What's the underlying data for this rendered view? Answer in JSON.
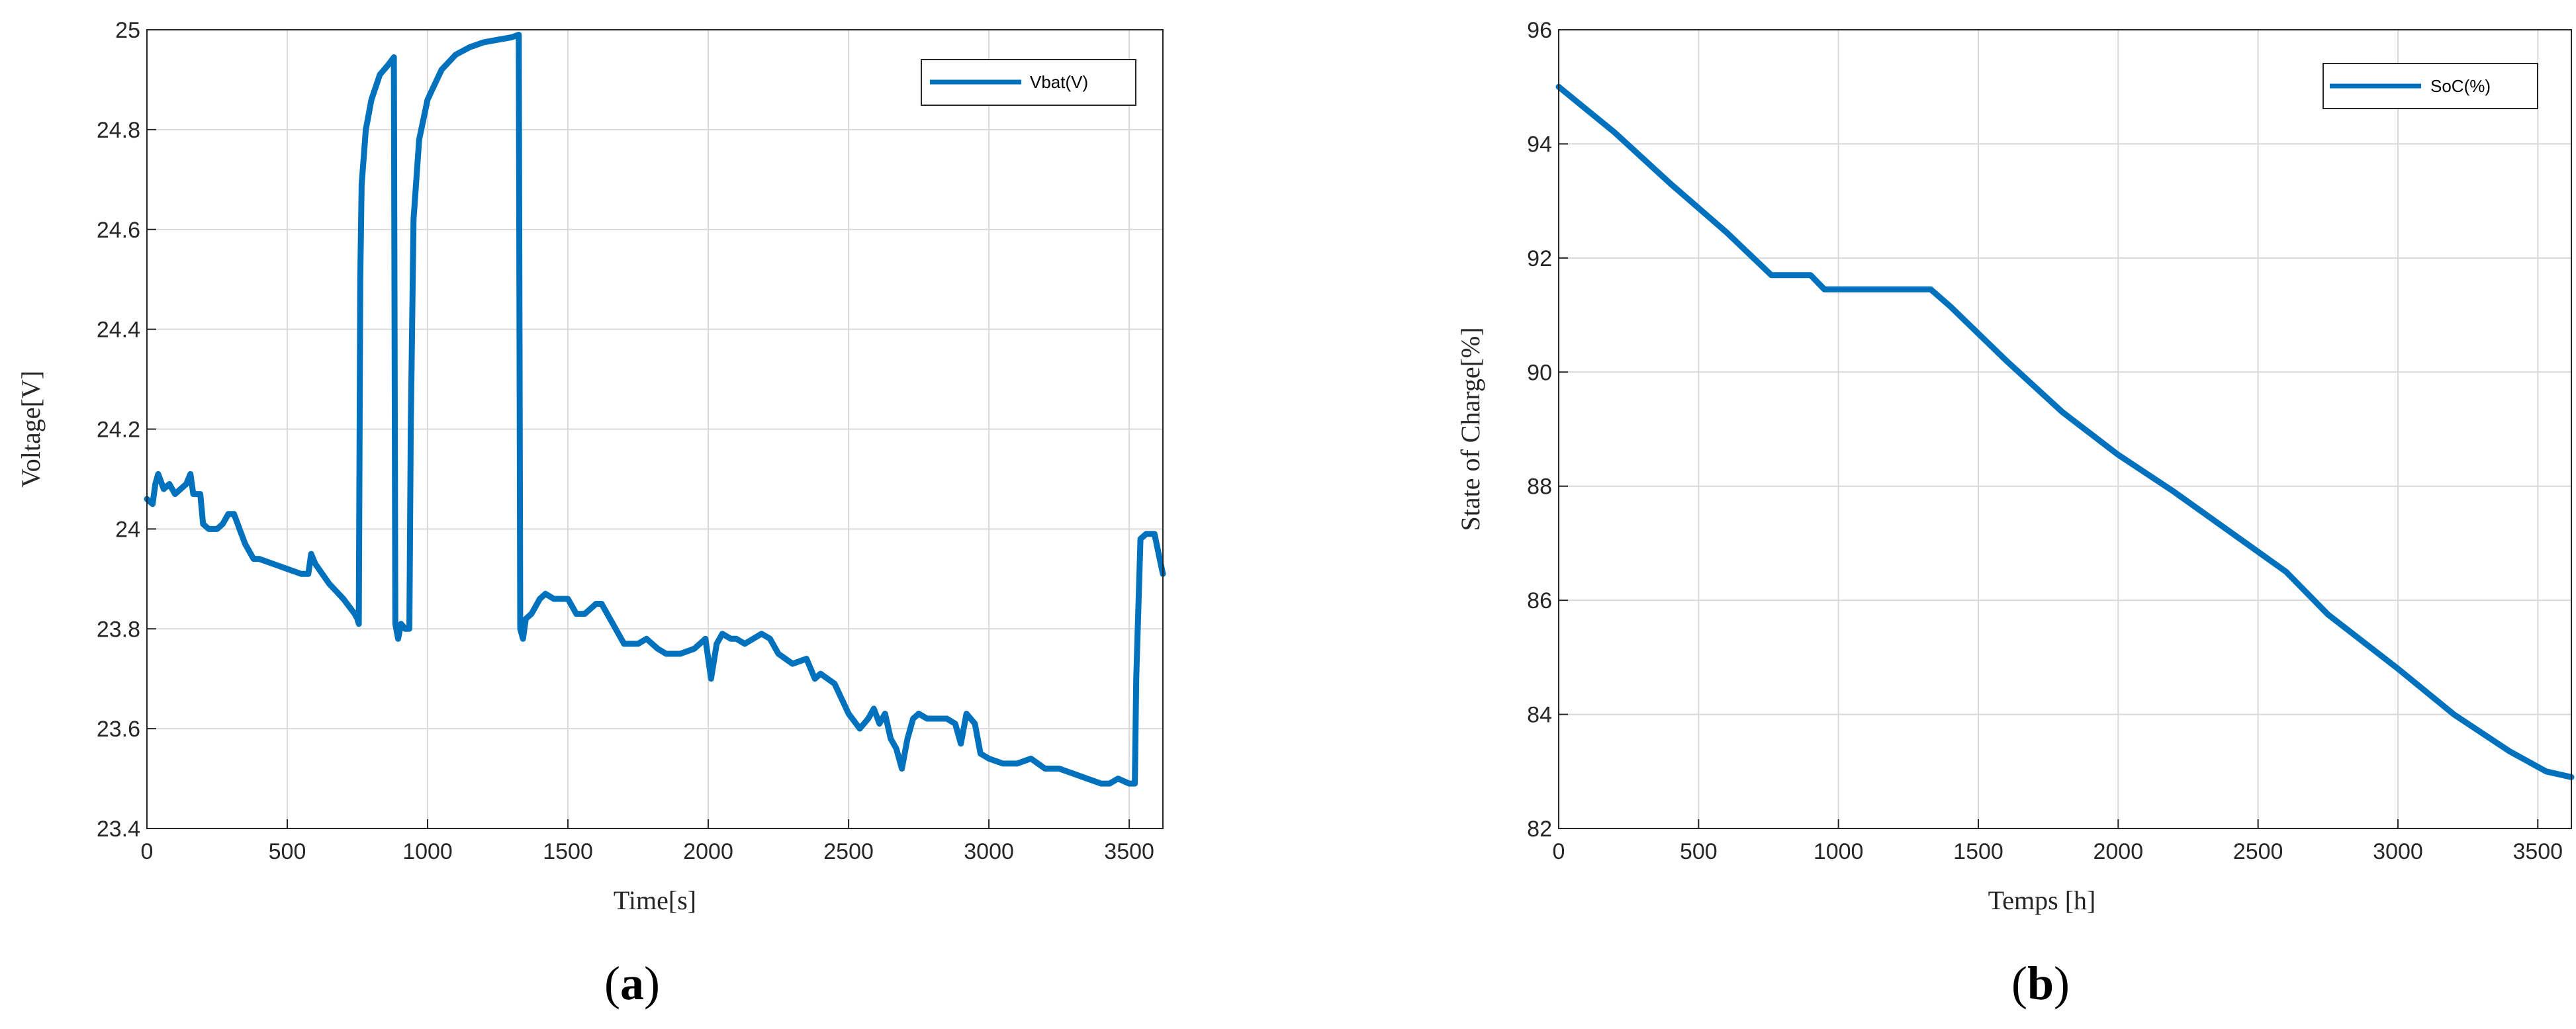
{
  "chart_data": [
    {
      "type": "line",
      "panel_label": "a",
      "xlabel": "Time[s]",
      "ylabel": "Voltage[V]",
      "xlim": [
        0,
        3620
      ],
      "ylim": [
        23.4,
        25
      ],
      "xticks": [
        0,
        500,
        1000,
        1500,
        2000,
        2500,
        3000,
        3500
      ],
      "yticks": [
        23.4,
        23.6,
        23.8,
        24,
        24.2,
        24.4,
        24.6,
        24.8,
        25
      ],
      "grid": true,
      "legend_position": "top-right",
      "color": "#0072BD",
      "series": [
        {
          "name": "Vbat(V)",
          "points": [
            [
              0,
              24.06
            ],
            [
              20,
              24.05
            ],
            [
              30,
              24.09
            ],
            [
              40,
              24.11
            ],
            [
              60,
              24.08
            ],
            [
              80,
              24.09
            ],
            [
              100,
              24.07
            ],
            [
              120,
              24.08
            ],
            [
              140,
              24.09
            ],
            [
              155,
              24.11
            ],
            [
              165,
              24.07
            ],
            [
              190,
              24.07
            ],
            [
              200,
              24.01
            ],
            [
              220,
              24.0
            ],
            [
              250,
              24.0
            ],
            [
              270,
              24.01
            ],
            [
              290,
              24.03
            ],
            [
              310,
              24.03
            ],
            [
              330,
              24.0
            ],
            [
              350,
              23.97
            ],
            [
              380,
              23.94
            ],
            [
              400,
              23.94
            ],
            [
              450,
              23.93
            ],
            [
              500,
              23.92
            ],
            [
              550,
              23.91
            ],
            [
              575,
              23.91
            ],
            [
              585,
              23.95
            ],
            [
              600,
              23.93
            ],
            [
              650,
              23.89
            ],
            [
              700,
              23.86
            ],
            [
              740,
              23.83
            ],
            [
              750,
              23.82
            ],
            [
              755,
              23.81
            ],
            [
              760,
              24.5
            ],
            [
              765,
              24.69
            ],
            [
              780,
              24.8
            ],
            [
              800,
              24.86
            ],
            [
              830,
              24.91
            ],
            [
              860,
              24.93
            ],
            [
              880,
              24.945
            ],
            [
              885,
              23.81
            ],
            [
              895,
              23.78
            ],
            [
              905,
              23.81
            ],
            [
              920,
              23.8
            ],
            [
              935,
              23.8
            ],
            [
              940,
              24.2
            ],
            [
              950,
              24.62
            ],
            [
              970,
              24.78
            ],
            [
              1000,
              24.86
            ],
            [
              1050,
              24.92
            ],
            [
              1100,
              24.95
            ],
            [
              1150,
              24.965
            ],
            [
              1200,
              24.975
            ],
            [
              1250,
              24.98
            ],
            [
              1300,
              24.985
            ],
            [
              1325,
              24.99
            ],
            [
              1330,
              23.8
            ],
            [
              1340,
              23.78
            ],
            [
              1350,
              23.82
            ],
            [
              1370,
              23.83
            ],
            [
              1380,
              23.84
            ],
            [
              1400,
              23.86
            ],
            [
              1420,
              23.87
            ],
            [
              1450,
              23.86
            ],
            [
              1500,
              23.86
            ],
            [
              1530,
              23.83
            ],
            [
              1560,
              23.83
            ],
            [
              1600,
              23.85
            ],
            [
              1620,
              23.85
            ],
            [
              1650,
              23.82
            ],
            [
              1700,
              23.77
            ],
            [
              1750,
              23.77
            ],
            [
              1780,
              23.78
            ],
            [
              1820,
              23.76
            ],
            [
              1850,
              23.75
            ],
            [
              1900,
              23.75
            ],
            [
              1950,
              23.76
            ],
            [
              1990,
              23.78
            ],
            [
              2000,
              23.74
            ],
            [
              2010,
              23.7
            ],
            [
              2030,
              23.77
            ],
            [
              2050,
              23.79
            ],
            [
              2080,
              23.78
            ],
            [
              2100,
              23.78
            ],
            [
              2130,
              23.77
            ],
            [
              2160,
              23.78
            ],
            [
              2190,
              23.79
            ],
            [
              2220,
              23.78
            ],
            [
              2250,
              23.75
            ],
            [
              2300,
              23.73
            ],
            [
              2350,
              23.74
            ],
            [
              2380,
              23.7
            ],
            [
              2400,
              23.71
            ],
            [
              2450,
              23.69
            ],
            [
              2500,
              23.63
            ],
            [
              2540,
              23.6
            ],
            [
              2570,
              23.62
            ],
            [
              2590,
              23.64
            ],
            [
              2610,
              23.61
            ],
            [
              2630,
              23.63
            ],
            [
              2650,
              23.58
            ],
            [
              2670,
              23.56
            ],
            [
              2690,
              23.52
            ],
            [
              2710,
              23.58
            ],
            [
              2730,
              23.62
            ],
            [
              2750,
              23.63
            ],
            [
              2780,
              23.62
            ],
            [
              2850,
              23.62
            ],
            [
              2880,
              23.61
            ],
            [
              2900,
              23.57
            ],
            [
              2920,
              23.63
            ],
            [
              2950,
              23.61
            ],
            [
              2970,
              23.55
            ],
            [
              3000,
              23.54
            ],
            [
              3050,
              23.53
            ],
            [
              3100,
              23.53
            ],
            [
              3150,
              23.54
            ],
            [
              3200,
              23.52
            ],
            [
              3250,
              23.52
            ],
            [
              3300,
              23.51
            ],
            [
              3350,
              23.5
            ],
            [
              3400,
              23.49
            ],
            [
              3430,
              23.49
            ],
            [
              3460,
              23.5
            ],
            [
              3500,
              23.49
            ],
            [
              3520,
              23.49
            ],
            [
              3525,
              23.7
            ],
            [
              3540,
              23.98
            ],
            [
              3560,
              23.99
            ],
            [
              3590,
              23.99
            ],
            [
              3605,
              23.95
            ],
            [
              3620,
              23.91
            ]
          ]
        }
      ]
    },
    {
      "type": "line",
      "panel_label": "b",
      "xlabel": "Temps [h]",
      "ylabel": "State of Charge[%]",
      "xlim": [
        0,
        3620
      ],
      "ylim": [
        82,
        96
      ],
      "xticks": [
        0,
        500,
        1000,
        1500,
        2000,
        2500,
        3000,
        3500
      ],
      "yticks": [
        82,
        84,
        86,
        88,
        90,
        92,
        94,
        96
      ],
      "grid": true,
      "legend_position": "top-right",
      "color": "#0072BD",
      "series": [
        {
          "name": "SoC(%)",
          "points": [
            [
              0,
              95.0
            ],
            [
              200,
              94.2
            ],
            [
              400,
              93.3
            ],
            [
              600,
              92.45
            ],
            [
              760,
              91.7
            ],
            [
              900,
              91.7
            ],
            [
              950,
              91.45
            ],
            [
              1100,
              91.45
            ],
            [
              1330,
              91.45
            ],
            [
              1400,
              91.15
            ],
            [
              1600,
              90.2
            ],
            [
              1800,
              89.3
            ],
            [
              2000,
              88.55
            ],
            [
              2200,
              87.9
            ],
            [
              2400,
              87.2
            ],
            [
              2600,
              86.5
            ],
            [
              2750,
              85.75
            ],
            [
              3000,
              84.8
            ],
            [
              3200,
              84.0
            ],
            [
              3400,
              83.35
            ],
            [
              3530,
              83.0
            ],
            [
              3620,
              82.9
            ]
          ]
        }
      ]
    }
  ]
}
